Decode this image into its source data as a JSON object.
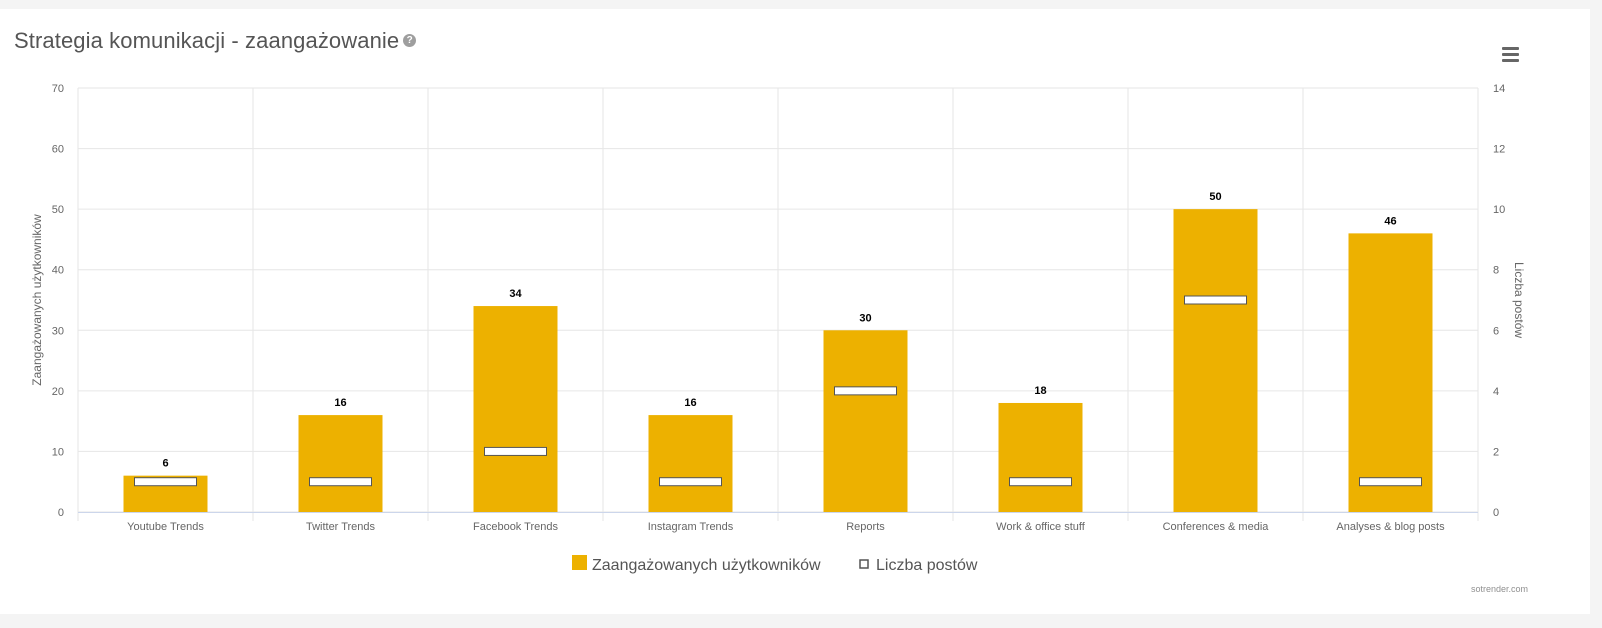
{
  "title": "Strategia komunikacji - zaangażowanie",
  "help_icon": "?",
  "credits": "sotrender.com",
  "colors": {
    "bar": "#EDB100",
    "grid": "#e6e6e6",
    "marker_fill": "#ffffff",
    "marker_stroke": "#555555"
  },
  "chart_data": {
    "type": "bar",
    "title": "Strategia komunikacji - zaangażowanie",
    "categories": [
      "Youtube Trends",
      "Twitter Trends",
      "Facebook Trends",
      "Instagram Trends",
      "Reports",
      "Work & office stuff",
      "Conferences & media",
      "Analyses & blog posts"
    ],
    "series": [
      {
        "name": "Zaangażowanych użytkowników",
        "type": "bar",
        "axis": "left",
        "values": [
          6,
          16,
          34,
          16,
          30,
          18,
          50,
          46
        ],
        "data_labels": true
      },
      {
        "name": "Liczba postów",
        "type": "marker",
        "axis": "right",
        "values": [
          1,
          1,
          2,
          1,
          4,
          1,
          7,
          1
        ]
      }
    ],
    "ylabel": "Zaangażowanych użytkowników",
    "ylim": [
      0,
      70
    ],
    "yticks": [
      "0",
      "10",
      "20",
      "30",
      "40",
      "50",
      "60",
      "70"
    ],
    "y2label": "Liczba postów",
    "y2lim": [
      0,
      14
    ],
    "y2ticks": [
      "0",
      "2",
      "4",
      "6",
      "8",
      "10",
      "12",
      "14"
    ],
    "grid": true,
    "legend": "bottom-center"
  }
}
